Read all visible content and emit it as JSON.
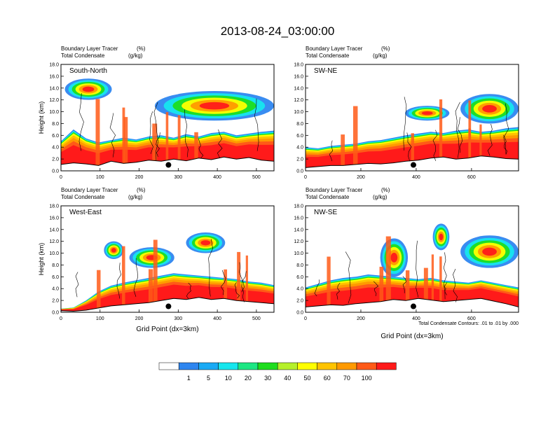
{
  "title": "2013-08-24_03:00:00",
  "colors": {
    "levels": [
      "#ffffff",
      "#2e86f0",
      "#19aaf5",
      "#16e6ee",
      "#1ce783",
      "#1edd1e",
      "#b5f02a",
      "#ffff00",
      "#ffc400",
      "#ff9a00",
      "#ff5a17",
      "#ff1a1a"
    ],
    "contour": "#000000",
    "frame": "#000000"
  },
  "colorbar": {
    "labels": [
      "1",
      "5",
      "10",
      "20",
      "30",
      "40",
      "50",
      "60",
      "70",
      "100"
    ]
  },
  "contour_note": "Total Condensate Contours: .01 to .01 by .000",
  "chart_data": [
    {
      "type": "heatmap",
      "panel": "South-North",
      "field_title": "Boundary Layer Tracer",
      "field_unit": "(%)",
      "contour_title": "Total Condensate",
      "contour_unit": "(g/kg)",
      "ylabel": "Height (km)",
      "xlabel": "",
      "xlim": [
        0,
        545
      ],
      "ylim": [
        0,
        18
      ],
      "xticks": [
        "0",
        "100",
        "200",
        "300",
        "400",
        "500"
      ],
      "xtick_values": [
        0,
        100,
        200,
        300,
        400,
        500
      ],
      "yticks": [
        "0.0",
        "2.0",
        "4.0",
        "6.0",
        "8.0",
        "10.0",
        "12.0",
        "14.0",
        "16.0",
        "18.0"
      ],
      "terrain_top_km": [
        1.2,
        1.5,
        1.3,
        1.0,
        1.8,
        1.4,
        1.6,
        2.0,
        1.8,
        2.2,
        1.9,
        2.4,
        2.1,
        2.6,
        2.2,
        2.5,
        2.0,
        1.8
      ],
      "pbl_top_km": [
        5.0,
        7.0,
        5.5,
        4.8,
        5.2,
        5.6,
        5.3,
        5.8,
        6.0,
        5.6,
        6.2,
        5.8,
        6.4,
        6.6,
        6.0,
        6.3,
        6.6,
        6.8
      ],
      "anvil": [
        {
          "x0": 10,
          "x1": 130,
          "y0": 12.0,
          "y1": 15.6
        },
        {
          "x0": 240,
          "x1": 545,
          "y0": 8.5,
          "y1": 13.5
        }
      ],
      "marker": {
        "x": 275,
        "y": 1.0
      }
    },
    {
      "type": "heatmap",
      "panel": "SW-NE",
      "field_title": "Boundary Layer Tracer",
      "field_unit": "(%)",
      "contour_title": "Total Condensate",
      "contour_unit": "(g/kg)",
      "ylabel": "",
      "xlabel": "",
      "xlim": [
        0,
        770
      ],
      "ylim": [
        0,
        18
      ],
      "xticks": [
        "0",
        "200",
        "400",
        "600"
      ],
      "xtick_values": [
        0,
        200,
        400,
        600
      ],
      "yticks": [
        "0.0",
        "2.0",
        "4.0",
        "6.0",
        "8.0",
        "10.0",
        "12.0",
        "14.0",
        "16.0",
        "18.0"
      ],
      "terrain_top_km": [
        0.6,
        0.8,
        1.0,
        1.0,
        1.2,
        1.4,
        1.3,
        1.5,
        1.8,
        2.0,
        2.4,
        2.6,
        2.2,
        2.4,
        2.8,
        2.6,
        2.3,
        2.2
      ],
      "pbl_top_km": [
        4.0,
        3.8,
        4.2,
        4.4,
        4.6,
        5.0,
        5.2,
        5.6,
        6.0,
        6.3,
        6.6,
        6.4,
        6.8,
        7.0,
        6.6,
        6.8,
        7.2,
        7.4
      ],
      "anvil": [
        {
          "x0": 360,
          "x1": 520,
          "y0": 8.5,
          "y1": 11.0
        },
        {
          "x0": 560,
          "x1": 770,
          "y0": 8.0,
          "y1": 13.0
        }
      ],
      "marker": {
        "x": 390,
        "y": 1.0
      }
    },
    {
      "type": "heatmap",
      "panel": "West-East",
      "field_title": "Boundary Layer Tracer",
      "field_unit": "(%)",
      "contour_title": "Total Condensate",
      "contour_unit": "(g/kg)",
      "ylabel": "Height (km)",
      "xlabel": "Grid Point (dx=3km)",
      "xlim": [
        0,
        545
      ],
      "ylim": [
        0,
        18
      ],
      "xticks": [
        "0",
        "100",
        "200",
        "300",
        "400",
        "500"
      ],
      "xtick_values": [
        0,
        100,
        200,
        300,
        400,
        500
      ],
      "yticks": [
        "0.0",
        "2.0",
        "4.0",
        "6.0",
        "8.0",
        "10.0",
        "12.0",
        "14.0",
        "16.0",
        "18.0"
      ],
      "terrain_top_km": [
        0.3,
        0.2,
        0.4,
        0.8,
        1.2,
        1.4,
        1.6,
        1.8,
        2.2,
        2.6,
        2.4,
        2.8,
        2.4,
        2.6,
        2.2,
        2.0,
        1.8,
        1.6
      ],
      "pbl_top_km": [
        0.6,
        0.8,
        2.0,
        3.5,
        4.5,
        5.0,
        5.4,
        5.8,
        6.2,
        6.6,
        6.4,
        6.2,
        6.0,
        5.8,
        5.6,
        5.2,
        5.0,
        4.6
      ],
      "anvil": [
        {
          "x0": 110,
          "x1": 160,
          "y0": 9.0,
          "y1": 12.0
        },
        {
          "x0": 175,
          "x1": 290,
          "y0": 7.5,
          "y1": 11.0
        },
        {
          "x0": 320,
          "x1": 420,
          "y0": 10.0,
          "y1": 13.5
        }
      ],
      "marker": {
        "x": 275,
        "y": 1.0
      }
    },
    {
      "type": "heatmap",
      "panel": "NW-SE",
      "field_title": "Boundary Layer Tracer",
      "field_unit": "(%)",
      "contour_title": "Total Condensate",
      "contour_unit": "(g/kg)",
      "ylabel": "",
      "xlabel": "Grid Point (dx=3km)",
      "xlim": [
        0,
        770
      ],
      "ylim": [
        0,
        18
      ],
      "xticks": [
        "0",
        "200",
        "400",
        "600"
      ],
      "xtick_values": [
        0,
        200,
        400,
        600
      ],
      "yticks": [
        "0.0",
        "2.0",
        "4.0",
        "6.0",
        "8.0",
        "10.0",
        "12.0",
        "14.0",
        "16.0",
        "18.0"
      ],
      "terrain_top_km": [
        1.0,
        1.2,
        1.4,
        1.3,
        1.6,
        1.8,
        2.0,
        2.4,
        2.2,
        2.6,
        2.3,
        2.0,
        2.2,
        2.4,
        2.6,
        2.1,
        1.6,
        1.0
      ],
      "pbl_top_km": [
        4.2,
        4.8,
        5.4,
        5.8,
        6.0,
        6.4,
        6.2,
        6.0,
        5.8,
        5.6,
        5.8,
        5.4,
        5.2,
        5.0,
        5.4,
        5.0,
        4.6,
        4.2
      ],
      "anvil": [
        {
          "x0": 270,
          "x1": 370,
          "y0": 6.0,
          "y1": 12.5
        },
        {
          "x0": 460,
          "x1": 520,
          "y0": 10.5,
          "y1": 15.0
        },
        {
          "x0": 560,
          "x1": 770,
          "y0": 7.5,
          "y1": 13.0
        }
      ],
      "marker": {
        "x": 390,
        "y": 1.0
      }
    }
  ]
}
